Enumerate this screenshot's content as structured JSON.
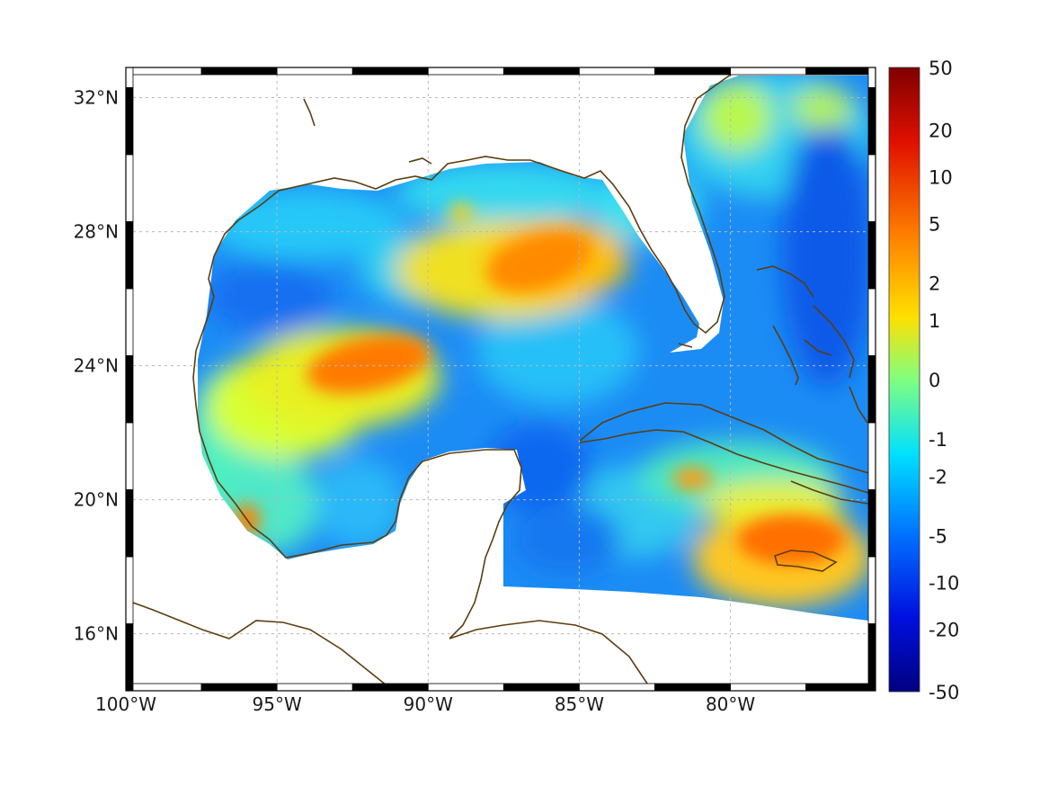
{
  "map": {
    "lon_range": [
      -100,
      -75.2
    ],
    "lat_range": [
      14.3,
      32.9
    ],
    "lon_ticks": [
      {
        "value": -100,
        "label": "100°W"
      },
      {
        "value": -95,
        "label": "95°W"
      },
      {
        "value": -90,
        "label": "90°W"
      },
      {
        "value": -85,
        "label": "85°W"
      },
      {
        "value": -80,
        "label": "80°W"
      }
    ],
    "lat_ticks": [
      {
        "value": 16,
        "label": "16°N"
      },
      {
        "value": 20,
        "label": "20°N"
      },
      {
        "value": 24,
        "label": "24°N"
      },
      {
        "value": 28,
        "label": "28°N"
      },
      {
        "value": 32,
        "label": "32°N"
      }
    ],
    "grid": true,
    "coastline_color": "#5c3d0f",
    "land_color": "#ffffff"
  },
  "colorbar": {
    "labels": [
      "50",
      "20",
      "10",
      "5",
      "2",
      "1",
      "0",
      "-1",
      "-2",
      "-5",
      "-10",
      "-20",
      "-50"
    ],
    "colors": [
      "#800000",
      "#d01000",
      "#ff3000",
      "#ff8000",
      "#ffd000",
      "#e8ff18",
      "#80ff80",
      "#18ffe8",
      "#00c8ff",
      "#0080ff",
      "#0030ff",
      "#0000d0",
      "#000080"
    ]
  }
}
